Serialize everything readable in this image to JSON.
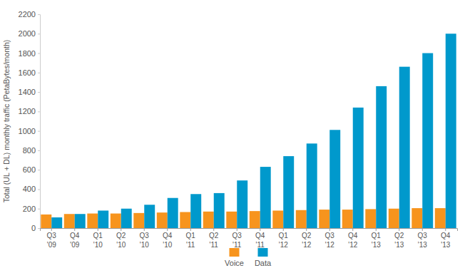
{
  "chart_data": {
    "type": "bar",
    "y_label": "Total (UL + DL) monthly traffic (PetaBytes/month)",
    "categories": [
      "Q3 '09",
      "Q4 '09",
      "Q1 '10",
      "Q2 '10",
      "Q3 '10",
      "Q4 '10",
      "Q1 '11",
      "Q2 '11",
      "Q3 '11",
      "Q4 '11",
      "Q1 '12",
      "Q2 '12",
      "Q3 '12",
      "Q4 '12",
      "Q1 '13",
      "Q2 '13",
      "Q3 '13",
      "Q4 '13"
    ],
    "series": [
      {
        "name": "Voice",
        "color": "#f7941d",
        "values": [
          140,
          145,
          150,
          150,
          155,
          160,
          165,
          170,
          170,
          175,
          180,
          185,
          190,
          190,
          195,
          200,
          205,
          205
        ]
      },
      {
        "name": "Data",
        "color": "#0099cc",
        "values": [
          110,
          145,
          180,
          200,
          240,
          310,
          350,
          360,
          490,
          630,
          740,
          870,
          1010,
          1240,
          1460,
          1660,
          1800,
          2000
        ]
      }
    ],
    "ylim": [
      0,
      2200
    ],
    "yticks": [
      0,
      200,
      400,
      600,
      800,
      1000,
      1200,
      1400,
      1600,
      1800,
      2000,
      2200
    ],
    "grid": false,
    "legend": "bottom"
  }
}
